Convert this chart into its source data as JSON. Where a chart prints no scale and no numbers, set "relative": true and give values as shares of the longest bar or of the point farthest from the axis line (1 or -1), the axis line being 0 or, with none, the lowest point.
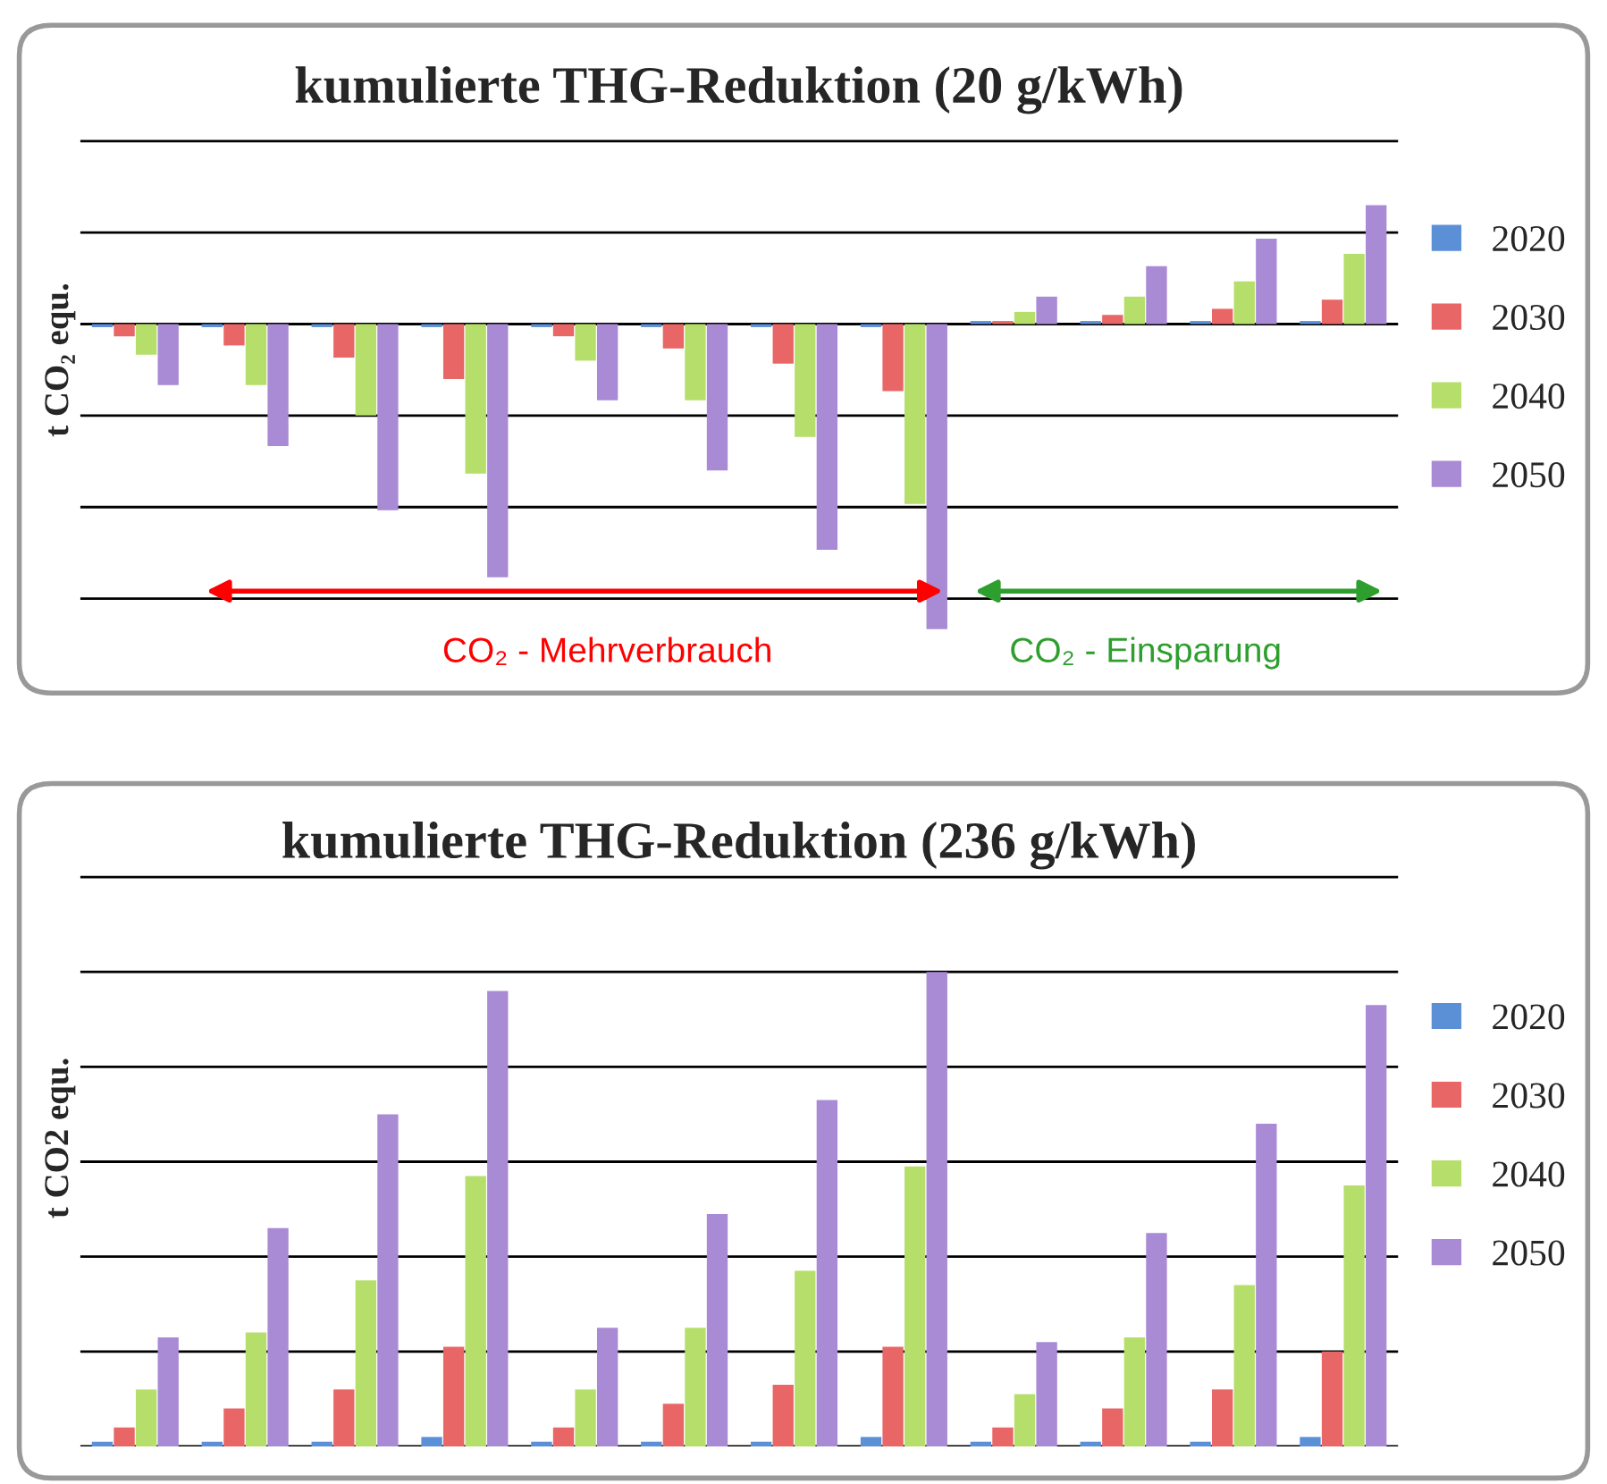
{
  "chart_data": [
    {
      "type": "bar",
      "title": "kumulierte THG-Reduktion (20 g/kWh)",
      "ylabel": "t CO₂ equ.",
      "relative": true,
      "grid": "y",
      "legend": "right",
      "categories": [
        null,
        null,
        null,
        null,
        null,
        null,
        null,
        null,
        null,
        null,
        null,
        null
      ],
      "series": [
        {
          "name": "2020",
          "color": "#5b8fd6",
          "values": [
            -0.01,
            -0.01,
            -0.01,
            -0.01,
            -0.01,
            -0.01,
            -0.01,
            -0.01,
            0.01,
            0.01,
            0.01,
            0.01
          ]
        },
        {
          "name": "2030",
          "color": "#e86666",
          "values": [
            -0.04,
            -0.07,
            -0.11,
            -0.18,
            -0.04,
            -0.08,
            -0.13,
            -0.22,
            0.01,
            0.03,
            0.05,
            0.08
          ]
        },
        {
          "name": "2040",
          "color": "#b5df6a",
          "values": [
            -0.1,
            -0.2,
            -0.3,
            -0.49,
            -0.12,
            -0.25,
            -0.37,
            -0.59,
            0.04,
            0.09,
            0.14,
            0.23
          ]
        },
        {
          "name": "2050",
          "color": "#a98ad4",
          "values": [
            -0.2,
            -0.4,
            -0.61,
            -0.83,
            -0.25,
            -0.48,
            -0.74,
            -1,
            0.09,
            0.19,
            0.28,
            0.39
          ]
        }
      ],
      "annotations": [
        "CO₂ - Mehrverbrauch",
        "CO₂ - Einsparung"
      ]
    },
    {
      "type": "bar",
      "title": "kumulierte THG-Reduktion (236 g/kWh)",
      "ylabel": "t CO2 equ.",
      "relative": true,
      "grid": "y",
      "legend": "right",
      "categories": [
        null,
        null,
        null,
        null,
        null,
        null,
        null,
        null,
        null,
        null,
        null,
        null
      ],
      "series": [
        {
          "name": "2020",
          "color": "#5b8fd6",
          "values": [
            0.01,
            0.01,
            0.01,
            0.02,
            0.01,
            0.01,
            0.01,
            0.02,
            0.01,
            0.01,
            0.01,
            0.02
          ]
        },
        {
          "name": "2030",
          "color": "#e86666",
          "values": [
            0.04,
            0.08,
            0.12,
            0.21,
            0.04,
            0.09,
            0.13,
            0.21,
            0.04,
            0.08,
            0.12,
            0.2
          ]
        },
        {
          "name": "2040",
          "color": "#b5df6a",
          "values": [
            0.12,
            0.24,
            0.35,
            0.57,
            0.12,
            0.25,
            0.37,
            0.59,
            0.11,
            0.23,
            0.34,
            0.55
          ]
        },
        {
          "name": "2050",
          "color": "#a98ad4",
          "values": [
            0.23,
            0.46,
            0.7,
            0.96,
            0.25,
            0.49,
            0.73,
            1,
            0.22,
            0.45,
            0.68,
            0.93
          ]
        }
      ]
    }
  ]
}
